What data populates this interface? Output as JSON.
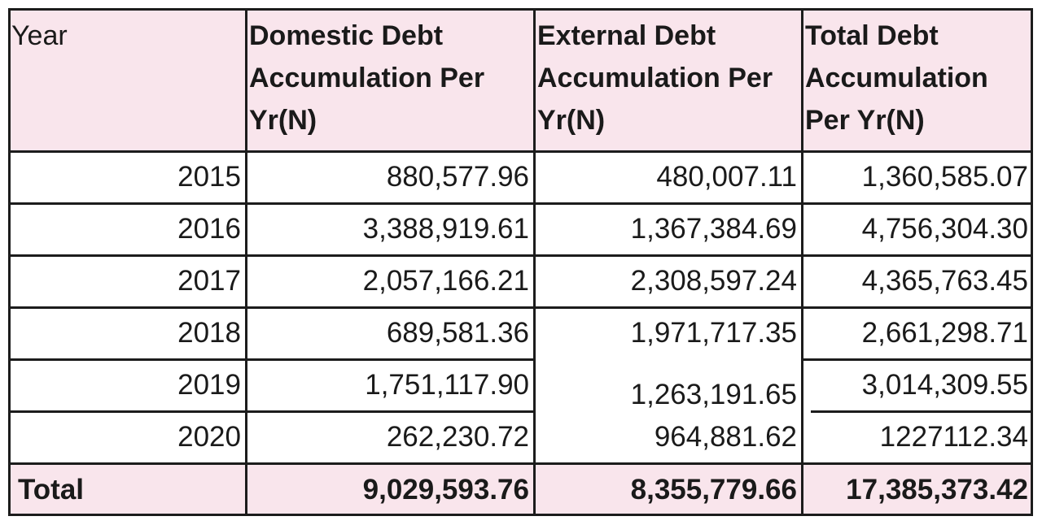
{
  "table": {
    "headers": [
      "Year",
      "Domestic Debt Accumulation Per Yr(N)",
      "External Debt Accumulation Per Yr(N)",
      "Total Debt Accumulation Per Yr(N)"
    ],
    "header_lines": [
      [
        "Year"
      ],
      [
        "Domestic Debt",
        "Accumulation Per",
        "Yr(N)"
      ],
      [
        "External Debt",
        "Accumulation Per",
        "Yr(N)"
      ],
      [
        "Total Debt",
        "Accumulation",
        "Per Yr(N)"
      ]
    ],
    "rows": [
      [
        "2015",
        "880,577.96",
        "480,007.11",
        "1,360,585.07"
      ],
      [
        "2016",
        "3,388,919.61",
        "1,367,384.69",
        "4,756,304.30"
      ],
      [
        "2017",
        "2,057,166.21",
        "2,308,597.24",
        "4,365,763.45"
      ],
      [
        "2018",
        "689,581.36",
        "1,971,717.35",
        "2,661,298.71"
      ],
      [
        "2019",
        "1,751,117.90",
        "1,263,191.65",
        "3,014,309.55"
      ],
      [
        "2020",
        "262,230.72",
        "964,881.62",
        "1227112.34"
      ]
    ],
    "total_row": [
      "Total",
      "9,029,593.76",
      "8,355,779.66",
      "17,385,373.42"
    ]
  },
  "colors": {
    "header_bg": "#f9e5ec",
    "border": "#1c1c1c"
  }
}
